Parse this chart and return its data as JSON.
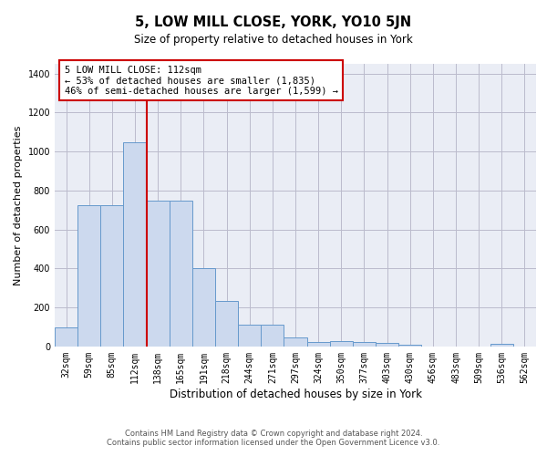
{
  "title": "5, LOW MILL CLOSE, YORK, YO10 5JN",
  "subtitle": "Size of property relative to detached houses in York",
  "xlabel": "Distribution of detached houses by size in York",
  "ylabel": "Number of detached properties",
  "categories": [
    "32sqm",
    "59sqm",
    "85sqm",
    "112sqm",
    "138sqm",
    "165sqm",
    "191sqm",
    "218sqm",
    "244sqm",
    "271sqm",
    "297sqm",
    "324sqm",
    "350sqm",
    "377sqm",
    "403sqm",
    "430sqm",
    "456sqm",
    "483sqm",
    "509sqm",
    "536sqm",
    "562sqm"
  ],
  "values": [
    100,
    725,
    725,
    1050,
    750,
    750,
    400,
    235,
    110,
    110,
    45,
    25,
    30,
    25,
    20,
    10,
    0,
    0,
    0,
    15,
    0
  ],
  "bar_color": "#ccd9ee",
  "bar_edge_color": "#6699cc",
  "red_line_index": 3,
  "annotation_text": "5 LOW MILL CLOSE: 112sqm\n← 53% of detached houses are smaller (1,835)\n46% of semi-detached houses are larger (1,599) →",
  "annotation_box_color": "white",
  "annotation_box_edge_color": "#cc0000",
  "red_line_color": "#cc0000",
  "ylim": [
    0,
    1450
  ],
  "yticks": [
    0,
    200,
    400,
    600,
    800,
    1000,
    1200,
    1400
  ],
  "grid_color": "#bbbbcc",
  "background_color": "#eaedf5",
  "footer_text": "Contains HM Land Registry data © Crown copyright and database right 2024.\nContains public sector information licensed under the Open Government Licence v3.0.",
  "title_fontsize": 10.5,
  "subtitle_fontsize": 8.5,
  "xlabel_fontsize": 8.5,
  "ylabel_fontsize": 8,
  "tick_fontsize": 7,
  "annotation_fontsize": 7.5,
  "footer_fontsize": 6
}
